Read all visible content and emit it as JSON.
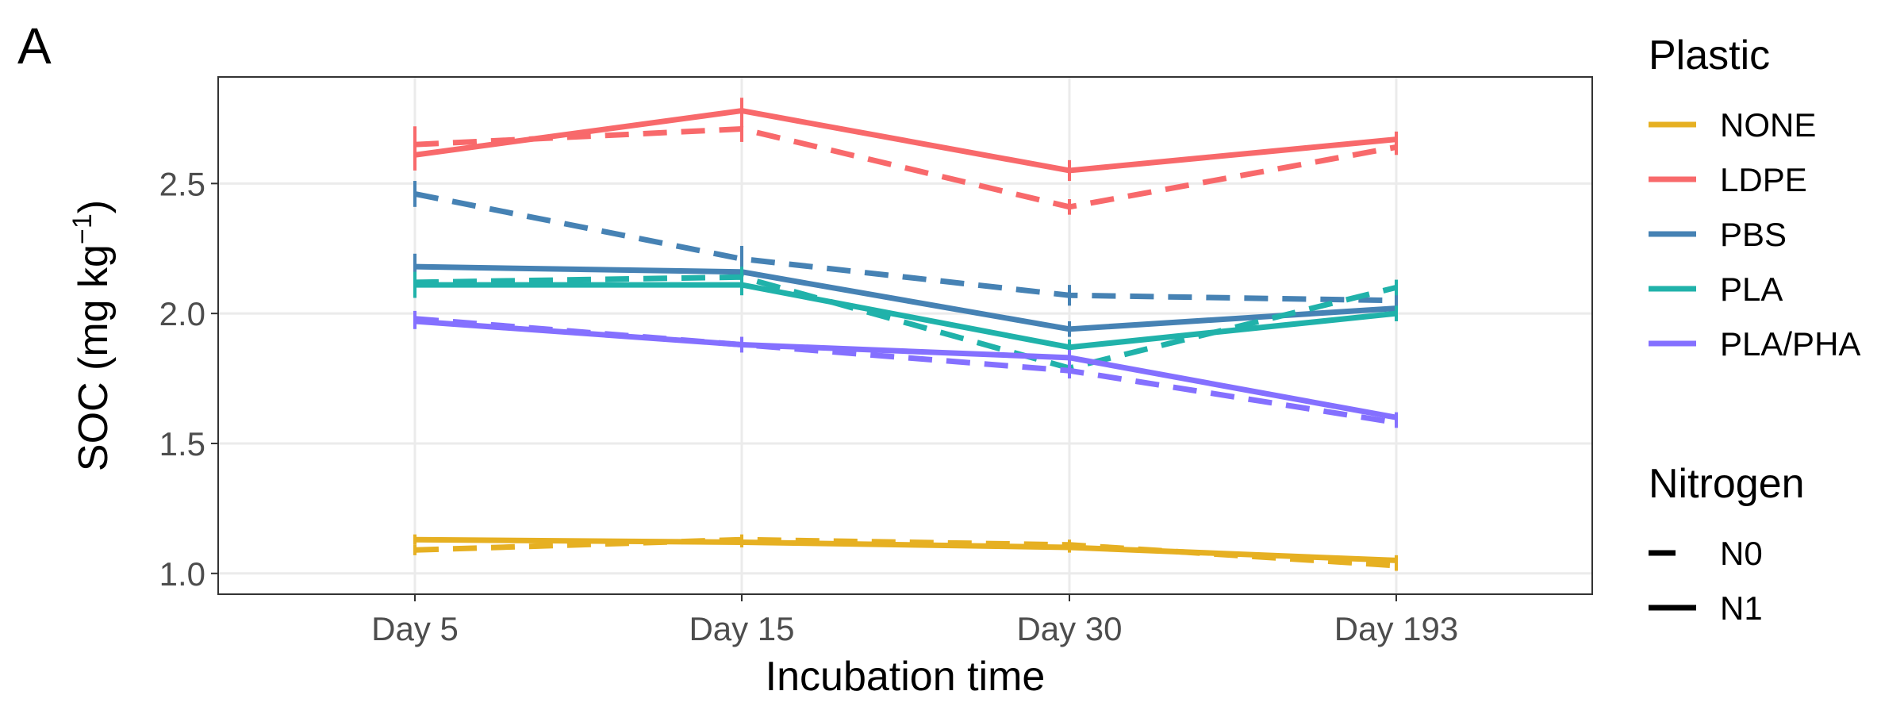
{
  "panel_label": "A",
  "chart_data": {
    "type": "line",
    "xlabel": "Incubation time",
    "ylabel": {
      "main": "SOC (mg kg",
      "sup": "−1",
      "end": ")"
    },
    "categories": [
      "Day 5",
      "Day 15",
      "Day 30",
      "Day 193"
    ],
    "ylim": [
      0.92,
      2.91
    ],
    "yticks": [
      1.0,
      1.5,
      2.0,
      2.5
    ],
    "ytick_labels": [
      "1.0",
      "1.5",
      "2.0",
      "2.5"
    ],
    "grid": true,
    "legend_position": "right",
    "legend_plastic_title": "Plastic",
    "legend_nitrogen_title": "Nitrogen",
    "plastics": [
      {
        "name": "NONE",
        "color": "#E6B022"
      },
      {
        "name": "LDPE",
        "color": "#F8696B"
      },
      {
        "name": "PBS",
        "color": "#4682B4"
      },
      {
        "name": "PLA",
        "color": "#20B2AA"
      },
      {
        "name": "PLA/PHA",
        "color": "#8470FF"
      }
    ],
    "nitrogen": [
      {
        "name": "N0",
        "dash": "dashed"
      },
      {
        "name": "N1",
        "dash": "solid"
      }
    ],
    "series": [
      {
        "plastic": "NONE",
        "nitrogen": "N1",
        "values": [
          1.13,
          1.12,
          1.1,
          1.05
        ],
        "err": [
          0.02,
          0.02,
          0.02,
          0.02
        ]
      },
      {
        "plastic": "NONE",
        "nitrogen": "N0",
        "values": [
          1.09,
          1.13,
          1.11,
          1.03
        ],
        "err": [
          0.02,
          0.02,
          0.02,
          0.02
        ]
      },
      {
        "plastic": "LDPE",
        "nitrogen": "N1",
        "values": [
          2.61,
          2.78,
          2.55,
          2.67
        ],
        "err": [
          0.06,
          0.05,
          0.04,
          0.03
        ]
      },
      {
        "plastic": "LDPE",
        "nitrogen": "N0",
        "values": [
          2.65,
          2.71,
          2.41,
          2.64
        ],
        "err": [
          0.07,
          0.05,
          0.03,
          0.03
        ]
      },
      {
        "plastic": "PBS",
        "nitrogen": "N1",
        "values": [
          2.18,
          2.16,
          1.94,
          2.02
        ],
        "err": [
          0.05,
          0.06,
          0.03,
          0.03
        ]
      },
      {
        "plastic": "PBS",
        "nitrogen": "N0",
        "values": [
          2.46,
          2.21,
          2.07,
          2.05
        ],
        "err": [
          0.05,
          0.05,
          0.04,
          0.03
        ]
      },
      {
        "plastic": "PLA",
        "nitrogen": "N1",
        "values": [
          2.11,
          2.11,
          1.87,
          2.0
        ],
        "err": [
          0.05,
          0.04,
          0.03,
          0.03
        ]
      },
      {
        "plastic": "PLA",
        "nitrogen": "N0",
        "values": [
          2.12,
          2.14,
          1.79,
          2.1
        ],
        "err": [
          0.04,
          0.04,
          0.03,
          0.03
        ]
      },
      {
        "plastic": "PLA/PHA",
        "nitrogen": "N1",
        "values": [
          1.97,
          1.88,
          1.83,
          1.6
        ],
        "err": [
          0.03,
          0.03,
          0.03,
          0.02
        ]
      },
      {
        "plastic": "PLA/PHA",
        "nitrogen": "N0",
        "values": [
          1.98,
          1.88,
          1.78,
          1.58
        ],
        "err": [
          0.03,
          0.03,
          0.03,
          0.02
        ]
      }
    ]
  }
}
